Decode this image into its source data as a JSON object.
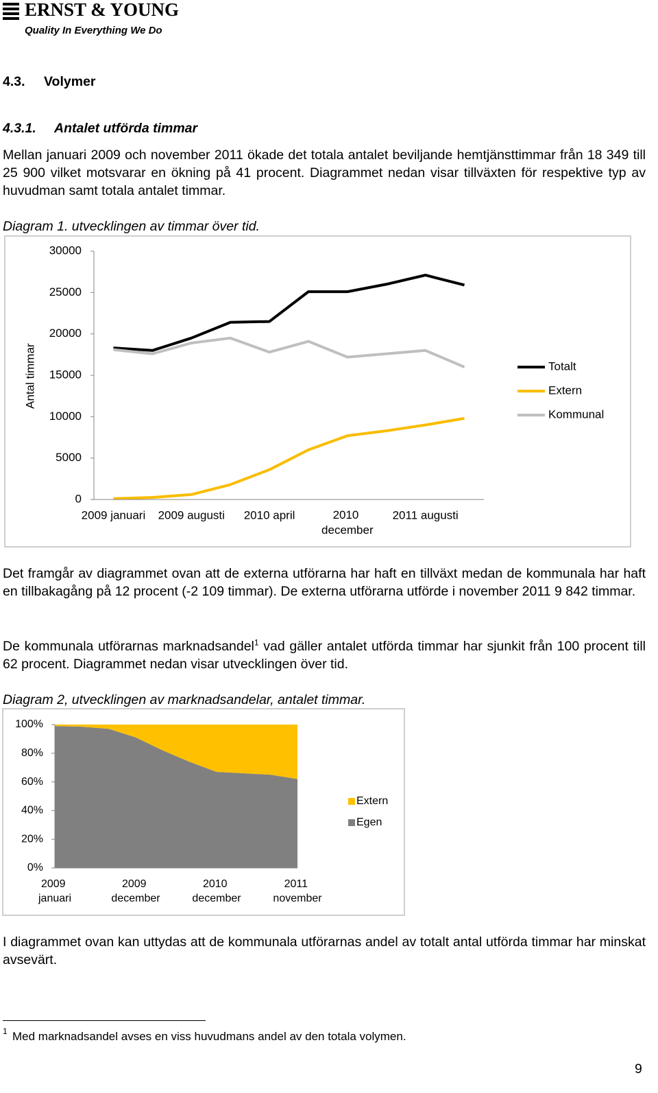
{
  "header": {
    "logo": "ERNST & YOUNG",
    "tagline": "Quality In Everything We Do"
  },
  "section": {
    "number": "4.3.",
    "title": "Volymer"
  },
  "subsection": {
    "number": "4.3.1.",
    "title": "Antalet utförda timmar"
  },
  "paragraph_1": "Mellan januari 2009 och november 2011 ökade det totala antalet beviljande hemtjänsttimmar från 18 349 till 25 900 vilket motsvarar en ökning på 41 procent. Diagrammet nedan visar tillväxten för respektive typ av huvudman samt totala antalet timmar.",
  "chart_data": [
    {
      "type": "line",
      "title": "Diagram 1. utvecklingen av timmar över tid.",
      "ylabel": "Antal timmar",
      "categories": [
        "2009 januari",
        null,
        "2009 augusti",
        null,
        "2010 april",
        null,
        "2010 december",
        null,
        "2011 augusti",
        null
      ],
      "series": [
        {
          "name": "Totalt",
          "color": "#000000",
          "values": [
            18300,
            18000,
            19500,
            21400,
            21500,
            25100,
            25100,
            26000,
            27100,
            25900
          ]
        },
        {
          "name": "Extern",
          "color": "#f9bd00",
          "values": [
            100,
            250,
            600,
            1800,
            3600,
            6000,
            7700,
            8300,
            9000,
            9800
          ]
        },
        {
          "name": "Kommunal",
          "color": "#bfbfbf",
          "values": [
            18100,
            17600,
            18900,
            19500,
            17800,
            19100,
            17200,
            17600,
            18000,
            16000
          ]
        }
      ],
      "ylim": [
        0,
        30000
      ],
      "yticks": [
        0,
        5000,
        10000,
        15000,
        20000,
        25000,
        30000
      ],
      "grid": false,
      "legend": "right"
    },
    {
      "type": "area",
      "stacked": true,
      "title": "Diagram 2, utvecklingen av marknadsandelar, antalet timmar.",
      "categories": [
        "2009 januari",
        null,
        null,
        "2009 december",
        null,
        null,
        "2010 december",
        null,
        null,
        "2011 november"
      ],
      "series": [
        {
          "name": "Egen",
          "color": "#808080",
          "values": [
            99,
            98.5,
            97,
            91,
            82,
            74,
            67,
            66,
            65,
            62
          ]
        },
        {
          "name": "Extern",
          "color": "#ffc000",
          "values": [
            1,
            1.5,
            3,
            9,
            18,
            26,
            33,
            34,
            35,
            38
          ]
        }
      ],
      "ylim": [
        0,
        100
      ],
      "yticks": [
        {
          "value": 0,
          "label": "0%"
        },
        {
          "value": 20,
          "label": "20%"
        },
        {
          "value": 40,
          "label": "40%"
        },
        {
          "value": 60,
          "label": "60%"
        },
        {
          "value": 80,
          "label": "80%"
        },
        {
          "value": 100,
          "label": "100%"
        }
      ],
      "grid": false,
      "legend": "right"
    }
  ],
  "paragraph_2": "Det framgår av diagrammet ovan att de externa utförarna har haft en tillväxt medan de kommunala har haft en tillbakagång på 12 procent (-2 109 timmar). De externa utförarna utförde i november 2011 9 842 timmar.",
  "paragraph_3": {
    "before": "De kommunala utförarnas marknadsandel",
    "footnote_ref": "1",
    "after": "vad gäller antalet utförda timmar har sjunkit från 100 procent till 62 procent. Diagrammet nedan visar utvecklingen över tid."
  },
  "paragraph_4": "I diagrammet ovan kan uttydas att de kommunala utförarnas andel av totalt antal utförda timmar har minskat avsevärt.",
  "footnote": {
    "mark": "1",
    "text": "Med marknadsandel avses en viss huvudmans andel av den totala volymen."
  },
  "page_number": "9"
}
